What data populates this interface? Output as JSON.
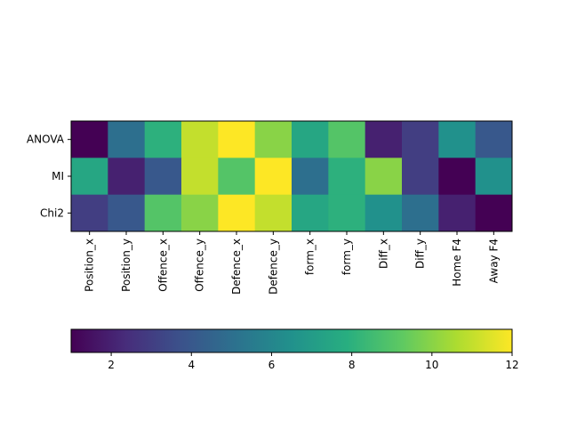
{
  "chart_data": {
    "type": "heatmap",
    "title": "",
    "xlabel": "",
    "ylabel": "",
    "x_categories": [
      "Position_x",
      "Position_y",
      "Offence_x",
      "Offence_y",
      "Defence_x",
      "Defence_y",
      "form_x",
      "form_y",
      "Diff_x",
      "Diff_y",
      "Home F4",
      "Away F4"
    ],
    "y_categories": [
      "ANOVA",
      "MI",
      "Chi2"
    ],
    "values": [
      [
        1,
        5,
        8,
        11,
        12,
        10,
        7.5,
        9,
        2,
        3,
        6.5,
        4
      ],
      [
        7.5,
        2,
        4,
        11,
        9,
        12,
        5,
        8,
        10,
        3,
        1,
        6.5
      ],
      [
        3,
        4,
        9,
        10,
        12,
        11,
        7.5,
        8,
        6.5,
        5,
        2,
        1
      ]
    ],
    "colormap": "viridis",
    "colorbar": {
      "range": [
        1,
        12
      ],
      "ticks": [
        "2",
        "4",
        "6",
        "8",
        "10",
        "12"
      ],
      "tick_values": [
        2,
        4,
        6,
        8,
        10,
        12
      ],
      "orientation": "horizontal"
    },
    "grid": false
  }
}
